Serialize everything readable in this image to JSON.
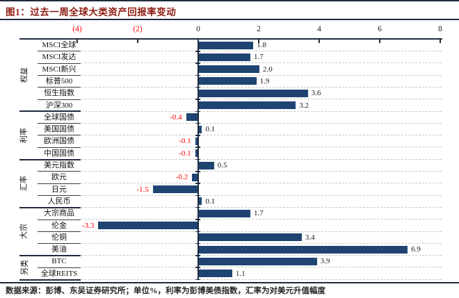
{
  "header": {
    "figure_title": "图1：过去一周全球大类资产回报率变动"
  },
  "footer": {
    "source_note": "数据来源：彭博、东吴证券研究所；单位%，利率为彭博美债指数，汇率为对美元升值幅度"
  },
  "chart_data": {
    "type": "bar",
    "orientation": "horizontal",
    "title": "过去一周全球大类资产回报率变动",
    "unit": "%",
    "xlim": [
      -4,
      8
    ],
    "grid": "dashed-row-lines",
    "legend": "none",
    "x_ticks": [
      {
        "label": "(4)",
        "value": -4
      },
      {
        "label": "(2)",
        "value": -2
      },
      {
        "label": "0",
        "value": 0
      },
      {
        "label": "2",
        "value": 2
      },
      {
        "label": "4",
        "value": 4
      },
      {
        "label": "6",
        "value": 6
      },
      {
        "label": "8",
        "value": 8
      }
    ],
    "groups": [
      {
        "name": "权益",
        "items": [
          {
            "label": "MSCI全球",
            "value": 1.8
          },
          {
            "label": "MSCI发达",
            "value": 1.7
          },
          {
            "label": "MSCI新兴",
            "value": 2.0
          },
          {
            "label": "标普500",
            "value": 1.9
          },
          {
            "label": "恒生指数",
            "value": 3.6
          },
          {
            "label": "沪深300",
            "value": 3.2
          }
        ]
      },
      {
        "name": "利率",
        "items": [
          {
            "label": "全球国债",
            "value": -0.4
          },
          {
            "label": "美国国债",
            "value": 0.1
          },
          {
            "label": "欧洲国债",
            "value": -0.1
          },
          {
            "label": "中国国债",
            "value": -0.1
          }
        ]
      },
      {
        "name": "汇率",
        "items": [
          {
            "label": "美元指数",
            "value": 0.5
          },
          {
            "label": "欧元",
            "value": -0.2
          },
          {
            "label": "日元",
            "value": -1.5
          },
          {
            "label": "人民币",
            "value": 0.1
          }
        ]
      },
      {
        "name": "大宗",
        "items": [
          {
            "label": "大宗商品",
            "value": 1.7
          },
          {
            "label": "伦金",
            "value": -3.3
          },
          {
            "label": "伦铜",
            "value": 3.4
          },
          {
            "label": "美油",
            "value": 6.9
          }
        ]
      },
      {
        "name": "另类",
        "items": [
          {
            "label": "BTC",
            "value": 3.9
          },
          {
            "label": "全球REITS",
            "value": 1.1
          }
        ]
      }
    ],
    "colors": {
      "bar": "#1f4472",
      "positive_value_label": "#1a1a1a",
      "negative_value_label": "#ff0000",
      "title": "#8e1b11",
      "axis_line": "#1f2a3d",
      "gridline": "#c9c9c9"
    }
  }
}
